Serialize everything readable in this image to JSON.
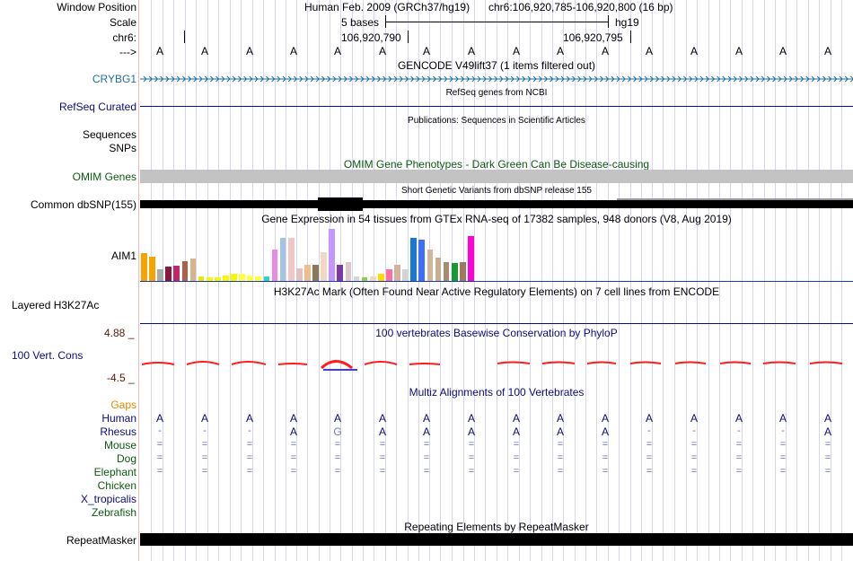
{
  "header": {
    "window_position_label": "Window Position",
    "scale_label": "Scale",
    "chrom_label": "chr6:",
    "strand_label": "--->",
    "assembly_text": "Human Feb. 2009 (GRCh37/hg19)",
    "position_text": "chr6:106,920,785-106,920,800 (16 bp)",
    "scale_text": "5 bases",
    "scale_db": "hg19",
    "coord1": "106,920,790",
    "coord2": "106,920,795",
    "bases": [
      "A",
      "A",
      "A",
      "A",
      "A",
      "A",
      "A",
      "A",
      "A",
      "A",
      "A",
      "A",
      "A",
      "A",
      "A",
      "A"
    ]
  },
  "tracks": {
    "gencode": {
      "title": "GENCODE V49lift37 (1 items filtered out)",
      "gene": "CRYBG1"
    },
    "refseq": {
      "title": "RefSeq genes from NCBI",
      "label": "RefSeq Curated"
    },
    "publications": {
      "title": "Publications: Sequences in Scientific Articles",
      "label1": "Sequences",
      "label2": "SNPs"
    },
    "omim": {
      "title": "OMIM Gene Phenotypes - Dark Green Can Be Disease-causing",
      "label": "OMIM Genes"
    },
    "dbsnp": {
      "title": "Short Genetic Variants from dbSNP release 155",
      "label": "Common dbSNP(155)"
    },
    "gtex": {
      "title": "Gene Expression in 54 tissues from GTEx RNA-seq of 17382 samples, 948 donors (V8, Aug 2019)",
      "gene": "AIM1"
    },
    "h3k27ac": {
      "title": "H3K27Ac Mark (Often Found Near Active Regulatory Elements) on 7 cell lines from ENCODE",
      "label": "Layered H3K27Ac"
    },
    "phylop": {
      "title": "100 vertebrates Basewise Conservation by PhyloP",
      "label": "100 Vert. Cons",
      "max": "4.88 _",
      "min": "-4.5 _"
    },
    "multiz": {
      "title": "Multiz Alignments of 100 Vertebrates",
      "gaps_label": "Gaps",
      "species": [
        {
          "name": "Human",
          "row": [
            "A",
            "A",
            "A",
            "A",
            "A",
            "A",
            "A",
            "A",
            "A",
            "A",
            "A",
            "A",
            "A",
            "A",
            "A",
            "A"
          ]
        },
        {
          "name": "Rhesus",
          "row": [
            "-",
            "-",
            "-",
            "A",
            "G",
            "A",
            "A",
            "A",
            "A",
            "A",
            "A",
            "-",
            "-",
            "-",
            "-",
            "A"
          ]
        },
        {
          "name": "Mouse",
          "row": [
            "=",
            "=",
            "=",
            "=",
            "=",
            "=",
            "=",
            "=",
            "=",
            "=",
            "=",
            "=",
            "=",
            "=",
            "=",
            "="
          ]
        },
        {
          "name": "Dog",
          "row": [
            "=",
            "=",
            "=",
            "=",
            "=",
            "=",
            "=",
            "=",
            "=",
            "=",
            "=",
            "=",
            "=",
            "=",
            "=",
            "="
          ]
        },
        {
          "name": "Elephant",
          "row": [
            "=",
            "=",
            "=",
            "=",
            "=",
            "=",
            "=",
            "=",
            "=",
            "=",
            "=",
            "=",
            "=",
            "=",
            "=",
            "="
          ]
        },
        {
          "name": "Chicken",
          "row": []
        },
        {
          "name": "X_tropicalis",
          "row": []
        },
        {
          "name": "Zebrafish",
          "row": []
        }
      ]
    },
    "repeatmasker": {
      "title": "Repeating Elements by RepeatMasker",
      "label": "RepeatMasker"
    }
  },
  "colors": {
    "gtex": [
      "#f7a300",
      "#f7a300",
      "#ababab",
      "#8b1a3a",
      "#c1266b",
      "#b06046",
      "#d6b38f",
      "#e8e800",
      "#f7f700",
      "#f7f700",
      "#f7f700",
      "#f7f700",
      "#ffff46",
      "#ffff46",
      "#ffff46",
      "#2dd3c9",
      "#ea8bea",
      "#a6c4e1",
      "#f0c6c6",
      "#e6bfbf",
      "#f2bd8e",
      "#8c7757",
      "#f2d7c3",
      "#c497ff",
      "#7a38aa",
      "#ddc7c7",
      "#d6d6d6",
      "#91d245",
      "#f0d9bb",
      "#ffd600",
      "#ff6ea1",
      "#d5b2a0",
      "#d4d4d4",
      "#1c77d3",
      "#3d6fff",
      "#d0b79c",
      "#c9ad91",
      "#a78c74",
      "#169b33",
      "#9e7a5c",
      "#ff00d8"
    ]
  }
}
